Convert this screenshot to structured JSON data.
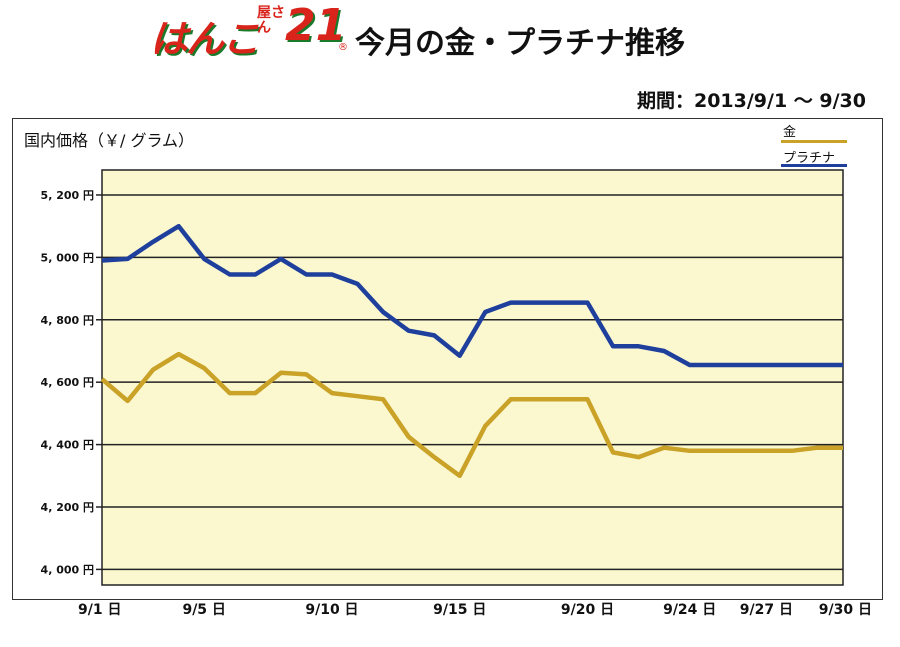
{
  "header": {
    "logo_main": "はんこ",
    "logo_small": "屋さん",
    "logo_num": "21",
    "logo_reg": "®",
    "title": "今月の金・プラチナ推移",
    "period": "期間：2013/9/1 〜 9/30"
  },
  "colors": {
    "gold": "#c9a227",
    "platinum": "#1f3f9c",
    "plot_bg": "#fbf8d0"
  },
  "chart_data": {
    "type": "line",
    "title": "今月の金・プラチナ推移",
    "ylabel": "国内価格（￥/ グラム）",
    "ylim": [
      3950,
      5280
    ],
    "yticks": [
      4000,
      4200,
      4400,
      4600,
      4800,
      5000,
      5200
    ],
    "ytick_labels": [
      "4, 000 円",
      "4, 200 円",
      "4, 400 円",
      "4, 600 円",
      "4, 800 円",
      "5, 000 円",
      "5, 200 円"
    ],
    "xticks": [
      1,
      5,
      10,
      15,
      20,
      24,
      27,
      30
    ],
    "xtick_labels": [
      "9/1 日",
      "9/5 日",
      "9/10 日",
      "9/15 日",
      "9/20 日",
      "9/24 日",
      "9/27 日",
      "9/30 日"
    ],
    "legend_position": "top-right",
    "grid": "horizontal",
    "series": [
      {
        "name": "金",
        "color": "#c9a227",
        "x": [
          1,
          2,
          3,
          4,
          5,
          6,
          7,
          8,
          9,
          10,
          11,
          12,
          13,
          14,
          15,
          16,
          17,
          18,
          19,
          20,
          21,
          22,
          23,
          24,
          25,
          26,
          27,
          28,
          29,
          30
        ],
        "values": [
          4610,
          4540,
          4640,
          4690,
          4645,
          4565,
          4565,
          4630,
          4625,
          4565,
          4555,
          4545,
          4425,
          4360,
          4300,
          4460,
          4545,
          4545,
          4545,
          4545,
          4375,
          4360,
          4390,
          4380,
          4380,
          4380,
          4380,
          4380,
          4390,
          4390
        ]
      },
      {
        "name": "プラチナ",
        "color": "#1f3f9c",
        "x": [
          1,
          2,
          3,
          4,
          5,
          6,
          7,
          8,
          9,
          10,
          11,
          12,
          13,
          14,
          15,
          16,
          17,
          18,
          19,
          20,
          21,
          22,
          23,
          24,
          25,
          26,
          27,
          28,
          29,
          30
        ],
        "values": [
          4990,
          4995,
          5050,
          5100,
          4995,
          4945,
          4945,
          4995,
          4945,
          4945,
          4915,
          4825,
          4765,
          4750,
          4685,
          4825,
          4855,
          4855,
          4855,
          4855,
          4715,
          4715,
          4700,
          4655,
          4655,
          4655,
          4655,
          4655,
          4655,
          4655
        ]
      }
    ]
  }
}
